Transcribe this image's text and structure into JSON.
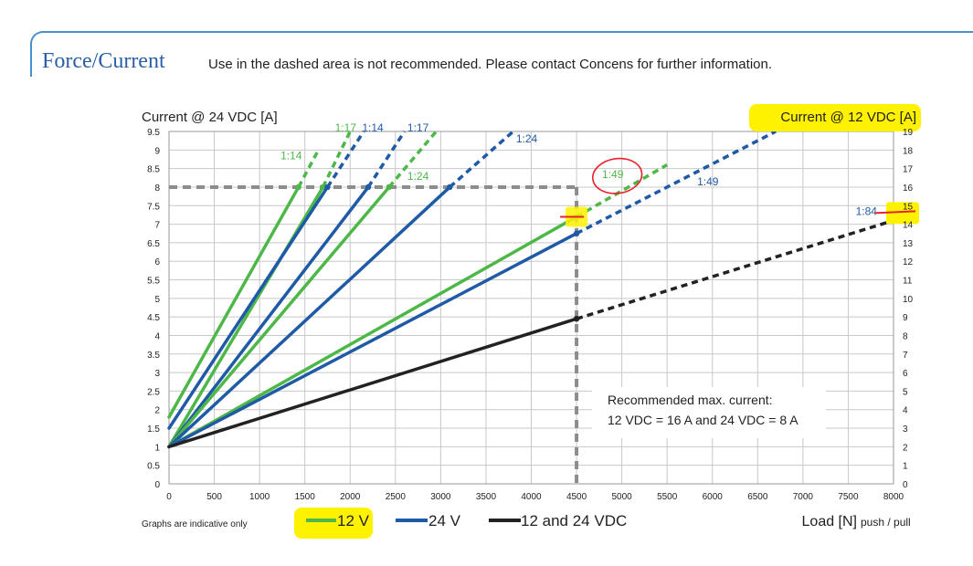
{
  "header": {
    "title": "Force/Current",
    "note": "Use in the dashed area is not recommended. Please contact Concens for further information."
  },
  "colors": {
    "green": "#4db848",
    "blue": "#1f5aa6",
    "black": "#222222",
    "grid": "#c8c8c8",
    "ref": "#8c8c8c",
    "highlight": "#fff200",
    "annotation": "#e8202a"
  },
  "chart_data": {
    "type": "line",
    "ylabel_left": "Current @ 24 VDC [A]",
    "ylabel_right": "Current @ 12 VDC [A]",
    "xlabel": "Load [N]",
    "xlabel_suffix": "push / pull",
    "xlim": [
      0,
      8000
    ],
    "ylim": [
      0,
      9.5
    ],
    "ylim_right": [
      0,
      19
    ],
    "grid": true,
    "x_ticks": [
      "0",
      "500",
      "1000",
      "1500",
      "2000",
      "2500",
      "3000",
      "3500",
      "4000",
      "4500",
      "5000",
      "5500",
      "6000",
      "6500",
      "7000",
      "7500",
      "8000"
    ],
    "y_ticks_left": [
      "0",
      "0.5",
      "1",
      "1.5",
      "2",
      "2.5",
      "3",
      "3.5",
      "4",
      "4.5",
      "5",
      "5.5",
      "6",
      "6.5",
      "7",
      "7.5",
      "8",
      "8.5",
      "9",
      "9.5"
    ],
    "y_ticks_right": [
      "0",
      "1",
      "2",
      "3",
      "4",
      "5",
      "6",
      "7",
      "8",
      "9",
      "10",
      "11",
      "12",
      "13",
      "14",
      "15",
      "16",
      "17",
      "18",
      "19"
    ],
    "series": [
      {
        "name": "1:14",
        "color": "green",
        "solid": [
          [
            0,
            1.8
          ],
          [
            1430,
            8
          ]
        ],
        "dashed": [
          [
            1430,
            8
          ],
          [
            1650,
            9
          ]
        ]
      },
      {
        "name": "1:17",
        "color": "green",
        "solid": [
          [
            0,
            1
          ],
          [
            1700,
            8
          ]
        ],
        "dashed": [
          [
            1700,
            8
          ],
          [
            2000,
            9.5
          ]
        ]
      },
      {
        "name": "1:14",
        "color": "blue",
        "solid": [
          [
            0,
            1.5
          ],
          [
            1750,
            8
          ]
        ],
        "dashed": [
          [
            1750,
            8
          ],
          [
            2150,
            9.5
          ]
        ]
      },
      {
        "name": "1:17",
        "color": "blue",
        "solid": [
          [
            0,
            1
          ],
          [
            2200,
            8
          ]
        ],
        "dashed": [
          [
            2200,
            8
          ],
          [
            2600,
            9.5
          ]
        ]
      },
      {
        "name": "1:24",
        "color": "green",
        "solid": [
          [
            0,
            1
          ],
          [
            2430,
            8
          ]
        ],
        "dashed": [
          [
            2430,
            8
          ],
          [
            2950,
            9.5
          ]
        ]
      },
      {
        "name": "1:24",
        "color": "blue",
        "solid": [
          [
            0,
            1
          ],
          [
            3100,
            8
          ]
        ],
        "dashed": [
          [
            3100,
            8
          ],
          [
            3800,
            9.5
          ]
        ]
      },
      {
        "name": "1:49",
        "color": "green",
        "solid": [
          [
            0,
            1
          ],
          [
            4500,
            7.2
          ]
        ],
        "dashed": [
          [
            4500,
            7.2
          ],
          [
            5500,
            8.6
          ]
        ]
      },
      {
        "name": "1:49",
        "color": "blue",
        "solid": [
          [
            0,
            1
          ],
          [
            4500,
            6.75
          ]
        ],
        "dashed": [
          [
            4500,
            6.75
          ],
          [
            6700,
            9.5
          ]
        ]
      },
      {
        "name": "1:84",
        "color": "black",
        "solid": [
          [
            0,
            1
          ],
          [
            4500,
            4.45
          ]
        ],
        "dashed": [
          [
            4500,
            4.45
          ],
          [
            8000,
            7.1
          ]
        ]
      }
    ],
    "line_labels": [
      {
        "text": "1:14",
        "color": "green",
        "at": [
          1350,
          8.75
        ]
      },
      {
        "text": "1:17",
        "color": "green",
        "at": [
          1950,
          9.5
        ]
      },
      {
        "text": "1:14",
        "color": "blue",
        "at": [
          2250,
          9.5
        ]
      },
      {
        "text": "1:17",
        "color": "blue",
        "at": [
          2750,
          9.5
        ]
      },
      {
        "text": "1:24",
        "color": "green",
        "at": [
          2750,
          8.2
        ]
      },
      {
        "text": "1:24",
        "color": "blue",
        "at": [
          3950,
          9.2
        ]
      },
      {
        "text": "1:49",
        "color": "green",
        "at": [
          4900,
          8.25
        ]
      },
      {
        "text": "1:49",
        "color": "blue",
        "at": [
          5950,
          8.05
        ]
      },
      {
        "text": "1:84",
        "color": "blue",
        "at": [
          7700,
          7.25
        ]
      }
    ],
    "reference": {
      "x": 4500,
      "y": 8
    },
    "annotation_box": {
      "line1": "Recommended max. current:",
      "line2": "12 VDC = 16 A and 24 VDC = 8 A"
    },
    "footnote": "Graphs are indicative only",
    "legend": [
      {
        "label": "12 V",
        "color": "green"
      },
      {
        "label": "24 V",
        "color": "blue"
      },
      {
        "label": "12 and 24 VDC",
        "color": "black"
      }
    ]
  }
}
